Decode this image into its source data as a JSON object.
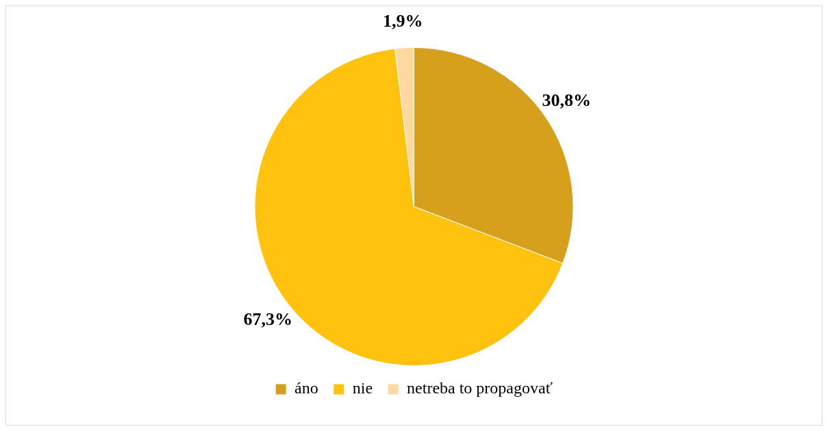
{
  "chart_data": {
    "type": "pie",
    "categories": [
      "áno",
      "nie",
      "netreba to propagovať"
    ],
    "values": [
      30.8,
      67.3,
      1.9
    ],
    "colors": [
      "#d6a01c",
      "#ffc20e",
      "#fdd9a0"
    ],
    "value_labels": [
      "30,8%",
      "67,3%",
      "1,9%"
    ],
    "legend": "bottom"
  }
}
